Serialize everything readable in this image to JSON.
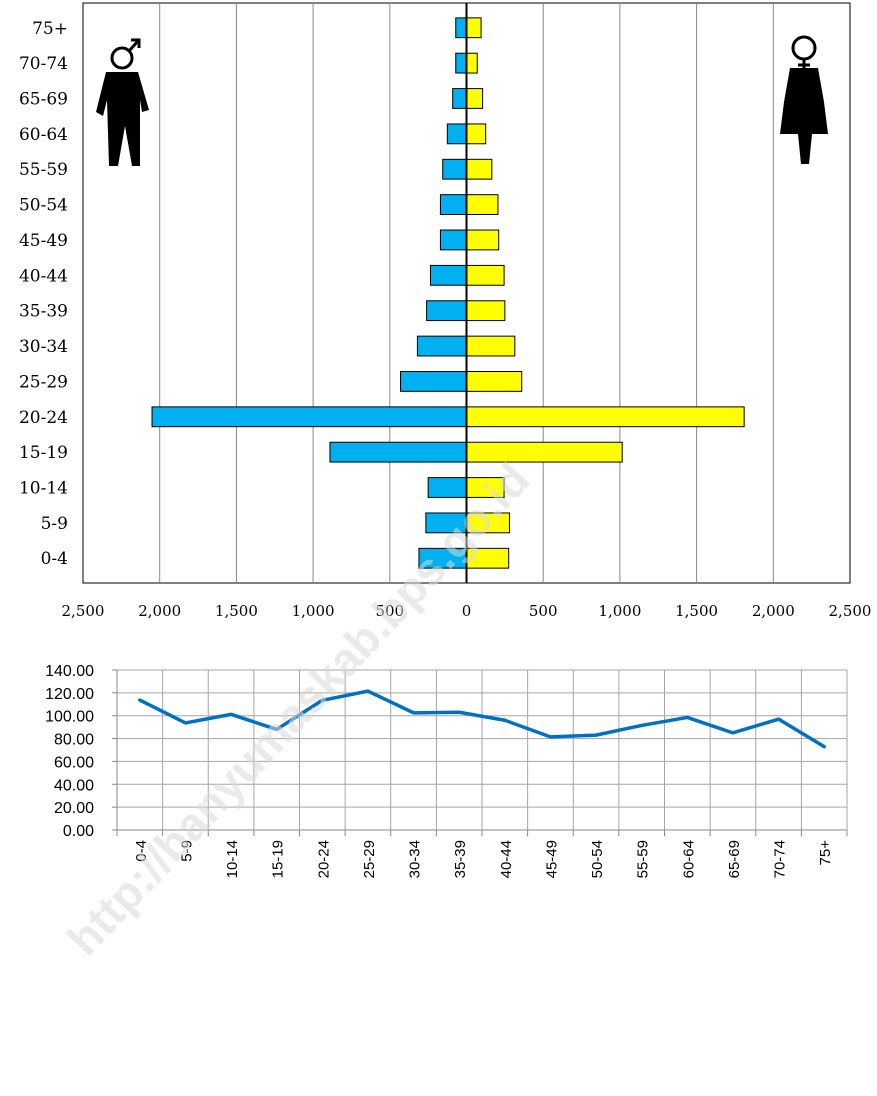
{
  "watermark": "http://banyumaskab.bps.go.id",
  "chart_data": [
    {
      "type": "bar",
      "subtype": "population-pyramid",
      "orientation": "horizontal",
      "categories": [
        "0-4",
        "5-9",
        "10-14",
        "15-19",
        "20-24",
        "25-29",
        "30-34",
        "35-39",
        "40-44",
        "45-49",
        "50-54",
        "55-59",
        "60-64",
        "65-69",
        "70-74",
        "75+"
      ],
      "series": [
        {
          "values": [
            310,
            265,
            250,
            890,
            2050,
            430,
            320,
            260,
            235,
            170,
            170,
            155,
            125,
            90,
            70,
            70
          ],
          "color": "#00b0f0",
          "side": "left",
          "icon": "male-figure-icon"
        },
        {
          "values": [
            275,
            280,
            245,
            1015,
            1810,
            360,
            315,
            250,
            245,
            210,
            205,
            165,
            125,
            105,
            70,
            95
          ],
          "color": "#ffff00",
          "side": "right",
          "icon": "female-figure-icon"
        }
      ],
      "x_ticks": [
        "2,500",
        "2,000",
        "1,500",
        "1,000",
        "500",
        "0",
        "500",
        "1,000",
        "1,500",
        "2,000",
        "2,500"
      ],
      "xlim": [
        -2500,
        2500
      ],
      "grid": "vertical",
      "title": "",
      "xlabel": "",
      "ylabel": ""
    },
    {
      "type": "line",
      "categories": [
        "0-4",
        "5-9",
        "10-14",
        "15-19",
        "20-24",
        "25-29",
        "30-34",
        "35-39",
        "40-44",
        "45-49",
        "50-54",
        "55-59",
        "60-64",
        "65-69",
        "70-74",
        "75+"
      ],
      "series": [
        {
          "values": [
            113.7,
            93.7,
            101.2,
            88.0,
            113.5,
            121.5,
            102.5,
            103.0,
            96.0,
            81.5,
            83.0,
            91.5,
            98.5,
            85.0,
            97.0,
            73.0
          ],
          "color": "#0070c0"
        }
      ],
      "y_ticks": [
        "0.00",
        "20.00",
        "40.00",
        "60.00",
        "80.00",
        "100.00",
        "120.00",
        "140.00"
      ],
      "ylim": [
        0,
        140
      ],
      "grid": "both",
      "title": "",
      "xlabel": "",
      "ylabel": ""
    }
  ]
}
